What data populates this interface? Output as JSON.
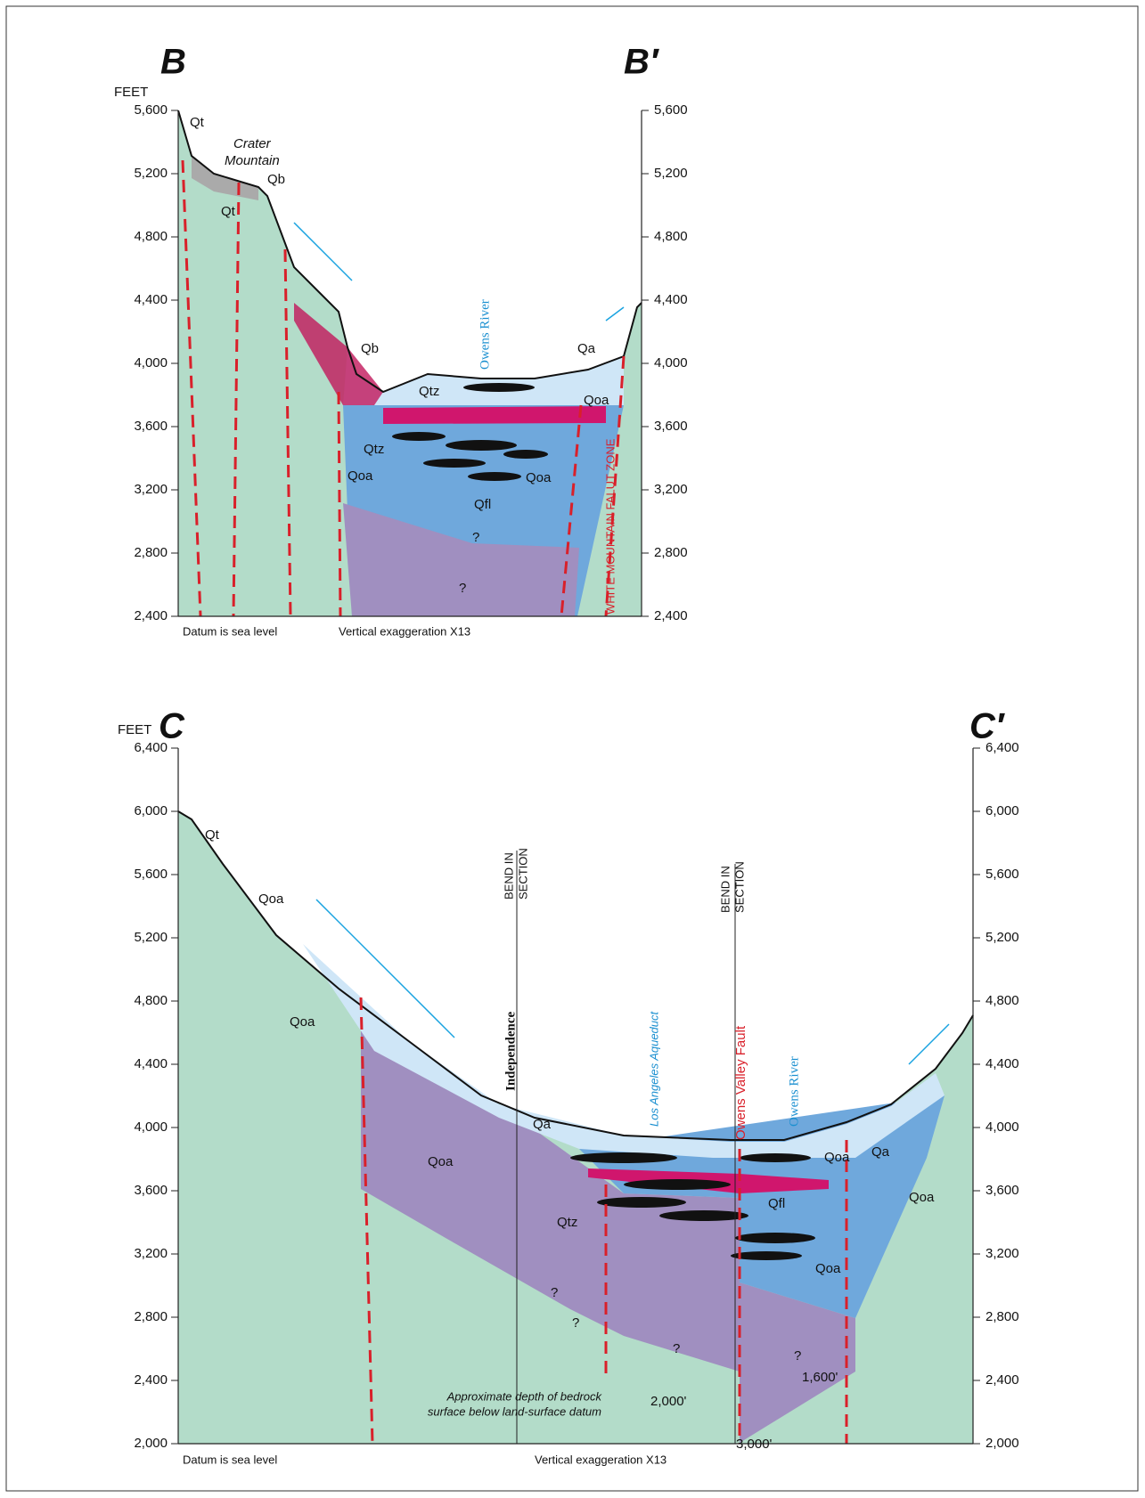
{
  "sections": [
    {
      "start": "B",
      "end": "B′",
      "unit": "FEET",
      "ticks": [
        "5,600",
        "5,200",
        "4,800",
        "4,400",
        "4,000",
        "3,600",
        "3,200",
        "2,800",
        "2,400"
      ],
      "labels": [
        "Qt",
        "Crater",
        "Mountain",
        "Qb",
        "Qt",
        "Qb",
        "Qtz",
        "Owens River",
        "Qa",
        "Qoa",
        "Qtz",
        "Qoa",
        "Qoa",
        "Qfl",
        "?",
        "?",
        "WHITE MOUNTAIN FALUT ZONE"
      ],
      "datum": "Datum is sea level",
      "exaggeration": "Vertical exaggeration X13"
    },
    {
      "start": "C",
      "end": "C′",
      "unit": "FEET",
      "ticks": [
        "6,400",
        "6,000",
        "5,600",
        "5,200",
        "4,800",
        "4,400",
        "4,000",
        "3,600",
        "3,200",
        "2,800",
        "2,400",
        "2,000"
      ],
      "labels": [
        "Qt",
        "Qoa",
        "Qoa",
        "BEND IN",
        "SECTION",
        "BEND IN",
        "SECTION",
        "Independence",
        "Los Angeles Aqueduct",
        "Owens Valley Fault",
        "Owens River",
        "Qa",
        "Qa",
        "Qoa",
        "Qoa",
        "Qtz",
        "Qfl",
        "Qoa",
        "Qoa",
        "?",
        "?",
        "?",
        "?",
        "Approximate depth of bedrock",
        "surface below land-surface datum",
        "2,000'",
        "1,600'",
        "3,000'"
      ],
      "datum": "Datum is sea level",
      "exaggeration": "Vertical exaggeration X13"
    }
  ]
}
